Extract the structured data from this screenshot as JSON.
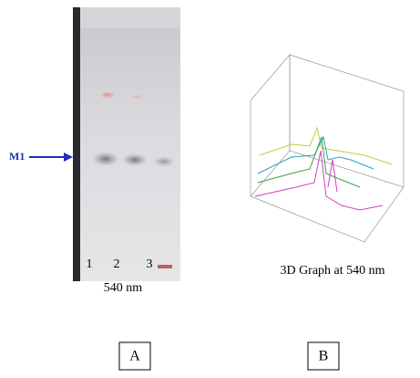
{
  "figure": {
    "panels": [
      {
        "label": "A",
        "marker": "M1",
        "lane_labels": [
          "1",
          "2",
          "3"
        ],
        "caption": "540 nm"
      },
      {
        "label": "B",
        "caption": "3D Graph at 540 nm"
      }
    ]
  }
}
